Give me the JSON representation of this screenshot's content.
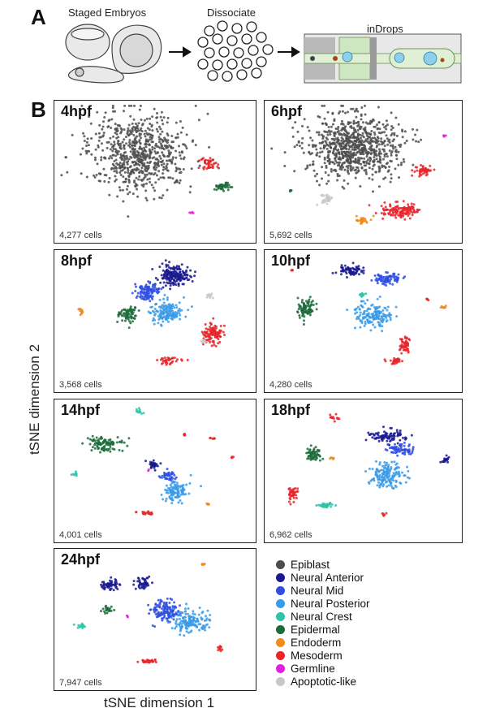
{
  "panel_a": {
    "letter": "A",
    "steps": [
      "Staged Embryos",
      "Dissociate",
      "inDrops"
    ]
  },
  "panel_b": {
    "letter": "B",
    "xlabel": "tSNE dimension 1",
    "ylabel": "tSNE dimension 2"
  },
  "colors": {
    "Epiblast": "#4d4d4d",
    "Neural Anterior": "#1a1a8f",
    "Neural Mid": "#2f4fe0",
    "Neural Posterior": "#3a9be8",
    "Neural Crest": "#2ec4a8",
    "Epidermal": "#1c6b3a",
    "Endoderm": "#f08c1a",
    "Mesoderm": "#e8262a",
    "Germline": "#e020e0",
    "Apoptotic-like": "#c8c8c8"
  },
  "legend": [
    "Epiblast",
    "Neural Anterior",
    "Neural Mid",
    "Neural Posterior",
    "Neural Crest",
    "Epidermal",
    "Endoderm",
    "Mesoderm",
    "Germline",
    "Apoptotic-like"
  ],
  "chart_data": [
    {
      "type": "scatter",
      "title": "4hpf",
      "cells": "4,277 cells",
      "clusters": [
        {
          "label": "Epiblast",
          "x": 0.42,
          "y": 0.4,
          "sx": 0.26,
          "sy": 0.3,
          "n": 700
        },
        {
          "label": "Mesoderm",
          "x": 0.78,
          "y": 0.49,
          "sx": 0.04,
          "sy": 0.05,
          "n": 45
        },
        {
          "label": "Epidermal",
          "x": 0.84,
          "y": 0.66,
          "sx": 0.05,
          "sy": 0.03,
          "n": 40
        },
        {
          "label": "Germline",
          "x": 0.69,
          "y": 0.86,
          "sx": 0.01,
          "sy": 0.01,
          "n": 4
        }
      ]
    },
    {
      "type": "scatter",
      "title": "6hpf",
      "cells": "5,692 cells",
      "clusters": [
        {
          "label": "Epiblast",
          "x": 0.45,
          "y": 0.35,
          "sx": 0.24,
          "sy": 0.24,
          "n": 800
        },
        {
          "label": "Mesoderm",
          "x": 0.82,
          "y": 0.54,
          "sx": 0.05,
          "sy": 0.04,
          "n": 45
        },
        {
          "label": "Mesoderm",
          "x": 0.7,
          "y": 0.85,
          "sx": 0.1,
          "sy": 0.06,
          "n": 130
        },
        {
          "label": "Endoderm",
          "x": 0.5,
          "y": 0.92,
          "sx": 0.04,
          "sy": 0.03,
          "n": 30
        },
        {
          "label": "Apoptotic-like",
          "x": 0.31,
          "y": 0.76,
          "sx": 0.03,
          "sy": 0.04,
          "n": 28
        },
        {
          "label": "Epidermal",
          "x": 0.12,
          "y": 0.69,
          "sx": 0.01,
          "sy": 0.01,
          "n": 5
        },
        {
          "label": "Germline",
          "x": 0.93,
          "y": 0.27,
          "sx": 0.01,
          "sy": 0.01,
          "n": 4
        }
      ]
    },
    {
      "type": "scatter",
      "title": "8hpf",
      "cells": "3,568 cells",
      "clusters": [
        {
          "label": "Neural Anterior",
          "x": 0.6,
          "y": 0.2,
          "sx": 0.08,
          "sy": 0.08,
          "n": 180
        },
        {
          "label": "Neural Mid",
          "x": 0.46,
          "y": 0.32,
          "sx": 0.06,
          "sy": 0.07,
          "n": 110
        },
        {
          "label": "Neural Posterior",
          "x": 0.56,
          "y": 0.48,
          "sx": 0.08,
          "sy": 0.09,
          "n": 150
        },
        {
          "label": "Epidermal",
          "x": 0.36,
          "y": 0.49,
          "sx": 0.05,
          "sy": 0.06,
          "n": 70
        },
        {
          "label": "Mesoderm",
          "x": 0.8,
          "y": 0.65,
          "sx": 0.05,
          "sy": 0.08,
          "n": 110
        },
        {
          "label": "Mesoderm",
          "x": 0.58,
          "y": 0.85,
          "sx": 0.07,
          "sy": 0.03,
          "n": 35
        },
        {
          "label": "Endoderm",
          "x": 0.12,
          "y": 0.48,
          "sx": 0.015,
          "sy": 0.03,
          "n": 14
        },
        {
          "label": "Apoptotic-like",
          "x": 0.79,
          "y": 0.35,
          "sx": 0.02,
          "sy": 0.02,
          "n": 10
        },
        {
          "label": "Apoptotic-like",
          "x": 0.75,
          "y": 0.7,
          "sx": 0.02,
          "sy": 0.02,
          "n": 8
        }
      ]
    },
    {
      "type": "scatter",
      "title": "10hpf",
      "cells": "4,280 cells",
      "clusters": [
        {
          "label": "Neural Anterior",
          "x": 0.43,
          "y": 0.16,
          "sx": 0.06,
          "sy": 0.04,
          "n": 70
        },
        {
          "label": "Neural Mid",
          "x": 0.63,
          "y": 0.22,
          "sx": 0.07,
          "sy": 0.05,
          "n": 80
        },
        {
          "label": "Neural Posterior",
          "x": 0.56,
          "y": 0.5,
          "sx": 0.1,
          "sy": 0.09,
          "n": 160
        },
        {
          "label": "Neural Crest",
          "x": 0.5,
          "y": 0.34,
          "sx": 0.02,
          "sy": 0.015,
          "n": 12
        },
        {
          "label": "Epidermal",
          "x": 0.2,
          "y": 0.44,
          "sx": 0.05,
          "sy": 0.08,
          "n": 85
        },
        {
          "label": "Mesoderm",
          "x": 0.72,
          "y": 0.73,
          "sx": 0.03,
          "sy": 0.06,
          "n": 50
        },
        {
          "label": "Mesoderm",
          "x": 0.67,
          "y": 0.86,
          "sx": 0.04,
          "sy": 0.03,
          "n": 28
        },
        {
          "label": "Mesoderm",
          "x": 0.13,
          "y": 0.16,
          "sx": 0.01,
          "sy": 0.01,
          "n": 4
        },
        {
          "label": "Mesoderm",
          "x": 0.84,
          "y": 0.38,
          "sx": 0.01,
          "sy": 0.01,
          "n": 4
        },
        {
          "label": "Endoderm",
          "x": 0.93,
          "y": 0.44,
          "sx": 0.02,
          "sy": 0.01,
          "n": 10
        }
      ]
    },
    {
      "type": "scatter",
      "title": "14hpf",
      "cells": "4,001 cells",
      "clusters": [
        {
          "label": "Epidermal",
          "x": 0.24,
          "y": 0.34,
          "sx": 0.08,
          "sy": 0.05,
          "n": 100
        },
        {
          "label": "Neural Crest",
          "x": 0.42,
          "y": 0.09,
          "sx": 0.02,
          "sy": 0.02,
          "n": 12
        },
        {
          "label": "Neural Crest",
          "x": 0.09,
          "y": 0.57,
          "sx": 0.015,
          "sy": 0.015,
          "n": 8
        },
        {
          "label": "Neural Anterior",
          "x": 0.49,
          "y": 0.5,
          "sx": 0.03,
          "sy": 0.03,
          "n": 35
        },
        {
          "label": "Neural Mid",
          "x": 0.57,
          "y": 0.58,
          "sx": 0.04,
          "sy": 0.04,
          "n": 45
        },
        {
          "label": "Neural Posterior",
          "x": 0.61,
          "y": 0.7,
          "sx": 0.06,
          "sy": 0.08,
          "n": 110
        },
        {
          "label": "Mesoderm",
          "x": 0.46,
          "y": 0.87,
          "sx": 0.04,
          "sy": 0.015,
          "n": 22
        },
        {
          "label": "Mesoderm",
          "x": 0.65,
          "y": 0.27,
          "sx": 0.015,
          "sy": 0.015,
          "n": 6
        },
        {
          "label": "Mesoderm",
          "x": 0.8,
          "y": 0.3,
          "sx": 0.015,
          "sy": 0.015,
          "n": 6
        },
        {
          "label": "Mesoderm",
          "x": 0.9,
          "y": 0.44,
          "sx": 0.01,
          "sy": 0.01,
          "n": 4
        },
        {
          "label": "Endoderm",
          "x": 0.77,
          "y": 0.8,
          "sx": 0.015,
          "sy": 0.01,
          "n": 7
        },
        {
          "label": "Germline",
          "x": 0.47,
          "y": 0.54,
          "sx": 0.005,
          "sy": 0.005,
          "n": 2
        }
      ]
    },
    {
      "type": "scatter",
      "title": "18hpf",
      "cells": "6,962 cells",
      "clusters": [
        {
          "label": "Neural Anterior",
          "x": 0.63,
          "y": 0.28,
          "sx": 0.1,
          "sy": 0.05,
          "n": 90
        },
        {
          "label": "Neural Anterior",
          "x": 0.93,
          "y": 0.46,
          "sx": 0.02,
          "sy": 0.03,
          "n": 20
        },
        {
          "label": "Neural Mid",
          "x": 0.7,
          "y": 0.38,
          "sx": 0.07,
          "sy": 0.04,
          "n": 70
        },
        {
          "label": "Neural Posterior",
          "x": 0.63,
          "y": 0.58,
          "sx": 0.09,
          "sy": 0.09,
          "n": 160
        },
        {
          "label": "Epidermal",
          "x": 0.24,
          "y": 0.42,
          "sx": 0.04,
          "sy": 0.05,
          "n": 55
        },
        {
          "label": "Neural Crest",
          "x": 0.31,
          "y": 0.81,
          "sx": 0.05,
          "sy": 0.015,
          "n": 35
        },
        {
          "label": "Mesoderm",
          "x": 0.13,
          "y": 0.73,
          "sx": 0.025,
          "sy": 0.06,
          "n": 40
        },
        {
          "label": "Mesoderm",
          "x": 0.35,
          "y": 0.14,
          "sx": 0.025,
          "sy": 0.04,
          "n": 14
        },
        {
          "label": "Mesoderm",
          "x": 0.61,
          "y": 0.88,
          "sx": 0.015,
          "sy": 0.015,
          "n": 6
        },
        {
          "label": "Endoderm",
          "x": 0.34,
          "y": 0.45,
          "sx": 0.015,
          "sy": 0.01,
          "n": 8
        }
      ]
    },
    {
      "type": "scatter",
      "title": "24hpf",
      "cells": "7,947 cells",
      "clusters": [
        {
          "label": "Neural Anterior",
          "x": 0.27,
          "y": 0.28,
          "sx": 0.05,
          "sy": 0.04,
          "n": 60
        },
        {
          "label": "Neural Anterior",
          "x": 0.44,
          "y": 0.27,
          "sx": 0.04,
          "sy": 0.05,
          "n": 45
        },
        {
          "label": "Neural Mid",
          "x": 0.55,
          "y": 0.48,
          "sx": 0.08,
          "sy": 0.08,
          "n": 140
        },
        {
          "label": "Neural Posterior",
          "x": 0.68,
          "y": 0.56,
          "sx": 0.1,
          "sy": 0.08,
          "n": 150
        },
        {
          "label": "Epidermal",
          "x": 0.26,
          "y": 0.47,
          "sx": 0.03,
          "sy": 0.03,
          "n": 22
        },
        {
          "label": "Neural Crest",
          "x": 0.12,
          "y": 0.6,
          "sx": 0.03,
          "sy": 0.015,
          "n": 14
        },
        {
          "label": "Mesoderm",
          "x": 0.47,
          "y": 0.87,
          "sx": 0.06,
          "sy": 0.015,
          "n": 30
        },
        {
          "label": "Mesoderm",
          "x": 0.84,
          "y": 0.77,
          "sx": 0.015,
          "sy": 0.03,
          "n": 10
        },
        {
          "label": "Endoderm",
          "x": 0.75,
          "y": 0.12,
          "sx": 0.015,
          "sy": 0.01,
          "n": 6
        },
        {
          "label": "Germline",
          "x": 0.36,
          "y": 0.52,
          "sx": 0.005,
          "sy": 0.01,
          "n": 3
        }
      ]
    }
  ]
}
